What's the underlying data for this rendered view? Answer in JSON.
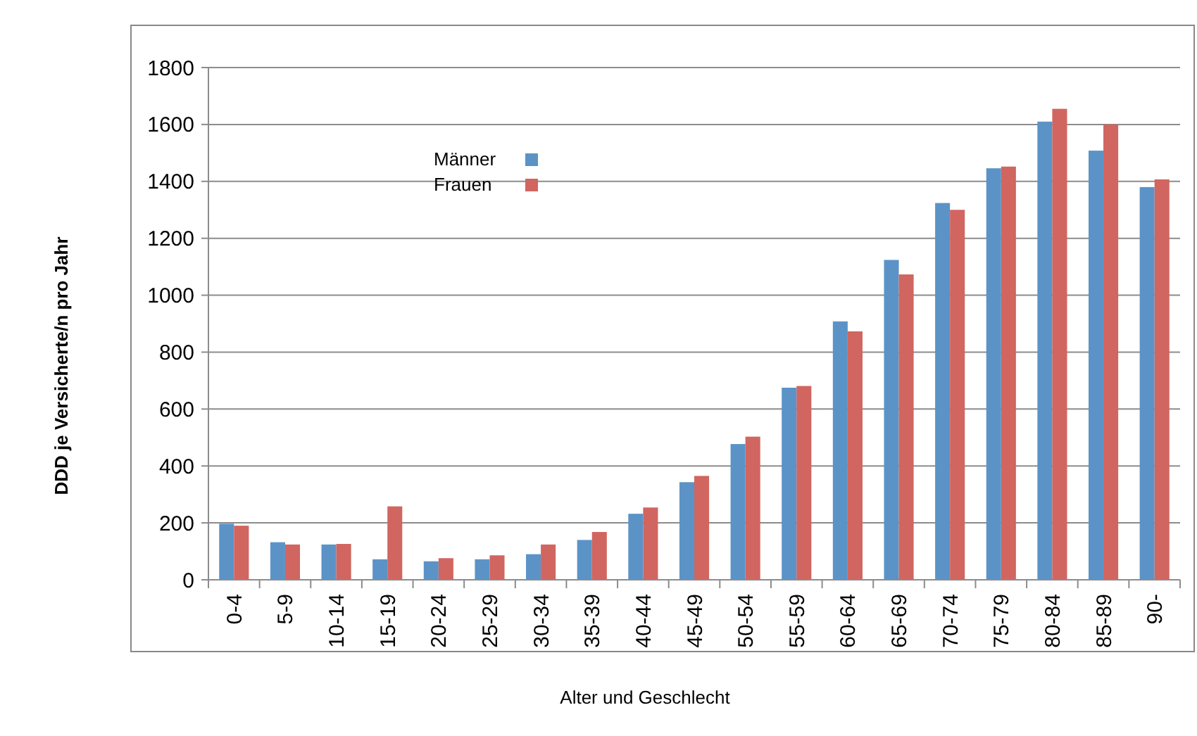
{
  "chart_data": {
    "type": "bar",
    "xlabel": "Alter und Geschlecht",
    "ylabel": "DDD je Versicherte/n pro Jahr",
    "categories": [
      "0-4",
      "5-9",
      "10-14",
      "15-19",
      "20-24",
      "25-29",
      "30-34",
      "35-39",
      "40-44",
      "45-49",
      "50-54",
      "55-59",
      "60-64",
      "65-69",
      "70-74",
      "75-79",
      "80-84",
      "85-89",
      "90-"
    ],
    "series": [
      {
        "name": "Männer",
        "color": "#5b93c7",
        "values": [
          197,
          132,
          124,
          72,
          65,
          72,
          90,
          140,
          232,
          343,
          477,
          675,
          908,
          1124,
          1324,
          1446,
          1610,
          1508,
          1380
        ]
      },
      {
        "name": "Frauen",
        "color": "#d16560",
        "values": [
          190,
          124,
          126,
          258,
          76,
          86,
          124,
          168,
          254,
          365,
          503,
          681,
          873,
          1073,
          1300,
          1452,
          1655,
          1600,
          1407
        ]
      }
    ],
    "ylim": [
      0,
      1800
    ],
    "yticks": [
      0,
      200,
      400,
      600,
      800,
      1000,
      1200,
      1400,
      1600,
      1800
    ],
    "grid": "y",
    "legend": "top left"
  }
}
